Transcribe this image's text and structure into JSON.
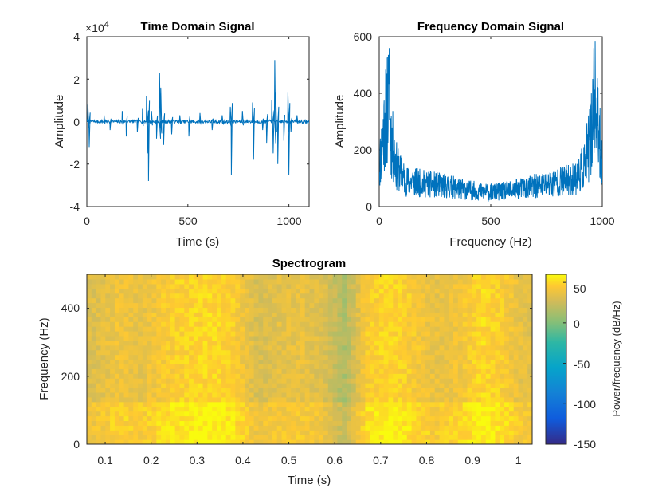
{
  "chart_data": [
    {
      "type": "line",
      "title": "Time Domain Signal",
      "xlabel": "Time (s)",
      "ylabel": "Amplitude",
      "xlim": [
        0,
        1100
      ],
      "ylim": [
        -4,
        4
      ],
      "y_exponent_label": "×10",
      "y_exponent_power": "4",
      "xticks": [
        "0",
        "500",
        "1000"
      ],
      "yticks": [
        "-4",
        "-2",
        "0",
        "2",
        "4"
      ],
      "spikes": [
        {
          "x": 5,
          "y": 0.8
        },
        {
          "x": 12,
          "y": -1.2
        },
        {
          "x": 85,
          "y": 0.3
        },
        {
          "x": 115,
          "y": -0.4
        },
        {
          "x": 175,
          "y": 0.5
        },
        {
          "x": 195,
          "y": -0.7
        },
        {
          "x": 250,
          "y": -0.5
        },
        {
          "x": 275,
          "y": 0.6
        },
        {
          "x": 295,
          "y": 1.2
        },
        {
          "x": 300,
          "y": -1.5
        },
        {
          "x": 305,
          "y": -2.8
        },
        {
          "x": 320,
          "y": 0.5
        },
        {
          "x": 345,
          "y": -0.8
        },
        {
          "x": 360,
          "y": 2.3
        },
        {
          "x": 366,
          "y": 1.6
        },
        {
          "x": 380,
          "y": -1.1
        },
        {
          "x": 420,
          "y": -0.6
        },
        {
          "x": 460,
          "y": 0.3
        },
        {
          "x": 505,
          "y": -0.7
        },
        {
          "x": 560,
          "y": 0.4
        },
        {
          "x": 620,
          "y": -0.4
        },
        {
          "x": 670,
          "y": 0.3
        },
        {
          "x": 710,
          "y": 0.7
        },
        {
          "x": 715,
          "y": -2.5
        },
        {
          "x": 770,
          "y": 0.5
        },
        {
          "x": 820,
          "y": 0.9
        },
        {
          "x": 825,
          "y": -1.8
        },
        {
          "x": 870,
          "y": -0.4
        },
        {
          "x": 890,
          "y": -1.0
        },
        {
          "x": 915,
          "y": 1.0
        },
        {
          "x": 922,
          "y": -1.5
        },
        {
          "x": 930,
          "y": 2.9
        },
        {
          "x": 935,
          "y": 1.4
        },
        {
          "x": 945,
          "y": -2.0
        },
        {
          "x": 975,
          "y": -0.9
        },
        {
          "x": 995,
          "y": 1.4
        },
        {
          "x": 1000,
          "y": -2.5
        },
        {
          "x": 1010,
          "y": -0.5
        },
        {
          "x": 1040,
          "y": 0.3
        }
      ]
    },
    {
      "type": "line",
      "title": "Frequency Domain Signal",
      "xlabel": "Frequency (Hz)",
      "ylabel": "Amplitude",
      "xlim": [
        0,
        1000
      ],
      "ylim": [
        0,
        600
      ],
      "xticks": [
        "0",
        "500",
        "1000"
      ],
      "yticks": [
        "0",
        "200",
        "400",
        "600"
      ],
      "envelope": [
        {
          "x": 0,
          "y": 150
        },
        {
          "x": 20,
          "y": 300
        },
        {
          "x": 40,
          "y": 420
        },
        {
          "x": 55,
          "y": 260
        },
        {
          "x": 80,
          "y": 150
        },
        {
          "x": 120,
          "y": 100
        },
        {
          "x": 200,
          "y": 90
        },
        {
          "x": 300,
          "y": 80
        },
        {
          "x": 400,
          "y": 65
        },
        {
          "x": 500,
          "y": 55
        },
        {
          "x": 600,
          "y": 65
        },
        {
          "x": 700,
          "y": 80
        },
        {
          "x": 800,
          "y": 95
        },
        {
          "x": 880,
          "y": 110
        },
        {
          "x": 920,
          "y": 160
        },
        {
          "x": 950,
          "y": 280
        },
        {
          "x": 965,
          "y": 430
        },
        {
          "x": 980,
          "y": 300
        },
        {
          "x": 1000,
          "y": 180
        }
      ],
      "peaks": [
        {
          "x": 45,
          "y": 560
        },
        {
          "x": 962,
          "y": 560
        }
      ]
    },
    {
      "type": "heatmap",
      "title": "Spectrogram",
      "xlabel": "Time (s)",
      "ylabel": "Frequency (Hz)",
      "xlim": [
        0.06,
        1.03
      ],
      "ylim": [
        0,
        500
      ],
      "xticks": [
        "0.1",
        "0.2",
        "0.3",
        "0.4",
        "0.5",
        "0.6",
        "0.7",
        "0.8",
        "0.9",
        "1"
      ],
      "yticks": [
        "0",
        "200",
        "400"
      ],
      "colorbar": {
        "label": "Power/frequency (dB/Hz)",
        "range": [
          -150,
          60
        ],
        "ticks": [
          "50",
          "0",
          "-50",
          "-100",
          "-150"
        ]
      },
      "columns_db": [
        {
          "t": 0.08,
          "db": 32
        },
        {
          "t": 0.13,
          "db": 40
        },
        {
          "t": 0.18,
          "db": 36
        },
        {
          "t": 0.23,
          "db": 44
        },
        {
          "t": 0.28,
          "db": 48
        },
        {
          "t": 0.33,
          "db": 50
        },
        {
          "t": 0.38,
          "db": 46
        },
        {
          "t": 0.43,
          "db": 30
        },
        {
          "t": 0.48,
          "db": 34
        },
        {
          "t": 0.53,
          "db": 36
        },
        {
          "t": 0.58,
          "db": 30
        },
        {
          "t": 0.62,
          "db": 14
        },
        {
          "t": 0.67,
          "db": 44
        },
        {
          "t": 0.72,
          "db": 50
        },
        {
          "t": 0.77,
          "db": 44
        },
        {
          "t": 0.82,
          "db": 36
        },
        {
          "t": 0.87,
          "db": 40
        },
        {
          "t": 0.92,
          "db": 50
        },
        {
          "t": 0.97,
          "db": 44
        },
        {
          "t": 1.01,
          "db": 34
        }
      ]
    }
  ]
}
